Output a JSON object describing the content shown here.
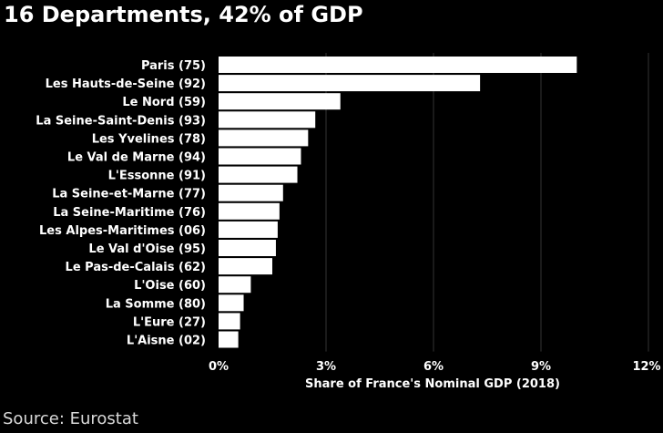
{
  "title": "16 Departments, 42% of GDP",
  "source": "Source: Eurostat",
  "colors": {
    "background": "#000000",
    "bar": "#ffffff",
    "gridline": "#333333",
    "text": "#ffffff"
  },
  "chart_data": {
    "type": "bar",
    "orientation": "horizontal",
    "categories": [
      "Paris (75)",
      "Les Hauts-de-Seine (92)",
      "Le Nord (59)",
      "La Seine-Saint-Denis (93)",
      "Les Yvelines (78)",
      "Le Val de Marne (94)",
      "L'Essonne (91)",
      "La Seine-et-Marne (77)",
      "La Seine-Maritime (76)",
      "Les Alpes-Maritimes (06)",
      "Le Val d'Oise (95)",
      "Le Pas-de-Calais (62)",
      "L'Oise (60)",
      "La Somme (80)",
      "L'Eure (27)",
      "L'Aisne (02)"
    ],
    "values": [
      10.0,
      7.3,
      3.4,
      2.7,
      2.5,
      2.3,
      2.2,
      1.8,
      1.7,
      1.65,
      1.6,
      1.5,
      0.9,
      0.7,
      0.6,
      0.55
    ],
    "xlabel": "Share of France's Nominal GDP (2018)",
    "ylabel": "",
    "xlim": [
      0,
      12
    ],
    "xticks": [
      0,
      3,
      6,
      9,
      12
    ],
    "xtick_labels": [
      "0%",
      "3%",
      "6%",
      "9%",
      "12%"
    ],
    "grid": "vertical",
    "legend": "none"
  }
}
